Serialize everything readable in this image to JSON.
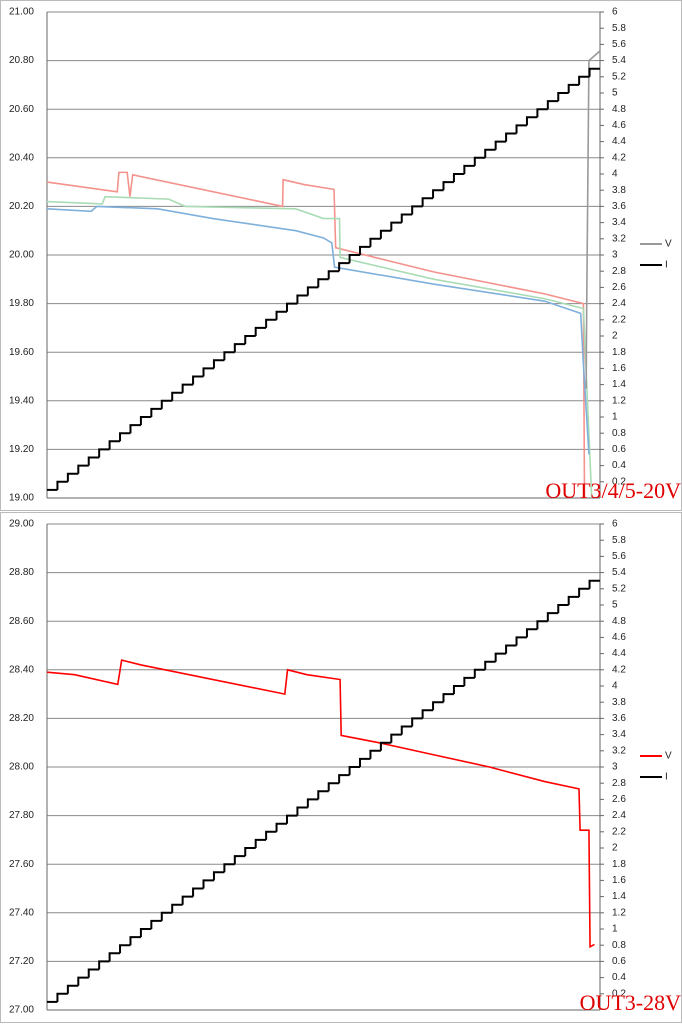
{
  "chart_data": [
    {
      "type": "line",
      "annotation": "OUT3/4/5-20V",
      "xlim": [
        0,
        100
      ],
      "ylim": [
        19,
        21
      ],
      "yticks": [
        {
          "value": 19,
          "label": "19.00"
        },
        {
          "value": 19.2,
          "label": "19.20"
        },
        {
          "value": 19.4,
          "label": "19.40"
        },
        {
          "value": 19.6,
          "label": "19.60"
        },
        {
          "value": 19.8,
          "label": "19.80"
        },
        {
          "value": 20,
          "label": "20.00"
        },
        {
          "value": 20.2,
          "label": "20.20"
        },
        {
          "value": 20.4,
          "label": "20.40"
        },
        {
          "value": 20.6,
          "label": "20.60"
        },
        {
          "value": 20.8,
          "label": "20.80"
        },
        {
          "value": 21,
          "label": "21.00"
        }
      ],
      "y2lim": [
        0,
        6
      ],
      "y2ticks": [
        0.2,
        0.4,
        0.6,
        0.8,
        1,
        1.2,
        1.4,
        1.6,
        1.8,
        2,
        2.2,
        2.4,
        2.6,
        2.8,
        3,
        3.2,
        3.4,
        3.6,
        3.8,
        4,
        4.2,
        4.4,
        4.6,
        4.8,
        5,
        5.2,
        5.4,
        5.6,
        5.8,
        6
      ],
      "grid": true,
      "legend": "right",
      "series": [
        {
          "color": "#f4928c",
          "x": [
            0,
            12.7,
            13,
            14.5,
            15,
            15.5,
            42.6,
            42.7,
            46.5,
            51.9,
            52.2,
            70,
            90,
            97,
            97.2
          ],
          "values": [
            20.3,
            20.26,
            20.34,
            20.34,
            20.24,
            20.33,
            20.2,
            20.31,
            20.29,
            20.27,
            20.03,
            19.93,
            19.84,
            19.8,
            19
          ]
        },
        {
          "color": "#a9dcb5",
          "x": [
            0,
            10,
            10.5,
            22,
            25,
            45,
            50,
            52.9,
            53,
            70,
            90,
            97,
            98.5
          ],
          "values": [
            20.22,
            20.21,
            20.24,
            20.23,
            20.2,
            20.19,
            20.15,
            20.15,
            19.99,
            19.9,
            19.82,
            19.78,
            19
          ]
        },
        {
          "color": "#7fb0dc",
          "x": [
            0,
            8,
            9,
            20,
            30,
            45,
            50,
            51.5,
            52,
            70,
            90,
            96.5,
            97,
            98
          ],
          "values": [
            20.19,
            20.18,
            20.2,
            20.19,
            20.15,
            20.1,
            20.07,
            20.05,
            19.95,
            19.88,
            19.81,
            19.76,
            19.55,
            19.18
          ]
        },
        {
          "name": "V",
          "color": "#999999",
          "x": [
            97.5,
            97.6,
            98,
            100
          ],
          "values": [
            19.45,
            19.8,
            20.8,
            20.84
          ]
        },
        {
          "name": "I",
          "color": "#000000",
          "axis": "y2",
          "step": true,
          "values": [
            0.1,
            0.2,
            0.3,
            0.4,
            0.5,
            0.6,
            0.7,
            0.8,
            0.9,
            1,
            1.1,
            1.2,
            1.3,
            1.4,
            1.5,
            1.6,
            1.7,
            1.8,
            1.9,
            2,
            2.1,
            2.2,
            2.3,
            2.4,
            2.5,
            2.6,
            2.7,
            2.8,
            2.9,
            3,
            3.1,
            3.2,
            3.3,
            3.4,
            3.5,
            3.6,
            3.7,
            3.8,
            3.9,
            4,
            4.1,
            4.2,
            4.3,
            4.4,
            4.5,
            4.6,
            4.7,
            4.8,
            4.9,
            5,
            5.1,
            5.2,
            5.3
          ]
        }
      ]
    },
    {
      "type": "line",
      "annotation": "OUT3-28V",
      "xlim": [
        0,
        100
      ],
      "ylim": [
        27,
        29
      ],
      "yticks": [
        {
          "value": 27,
          "label": "27.00"
        },
        {
          "value": 27.2,
          "label": "27.20"
        },
        {
          "value": 27.4,
          "label": "27.40"
        },
        {
          "value": 27.6,
          "label": "27.60"
        },
        {
          "value": 27.8,
          "label": "27.80"
        },
        {
          "value": 28,
          "label": "28.00"
        },
        {
          "value": 28.2,
          "label": "28.20"
        },
        {
          "value": 28.4,
          "label": "28.40"
        },
        {
          "value": 28.6,
          "label": "28.60"
        },
        {
          "value": 28.8,
          "label": "28.80"
        },
        {
          "value": 29,
          "label": "29.00"
        }
      ],
      "y2lim": [
        0,
        6
      ],
      "y2ticks": [
        0.2,
        0.4,
        0.6,
        0.8,
        1,
        1.2,
        1.4,
        1.6,
        1.8,
        2,
        2.2,
        2.4,
        2.6,
        2.8,
        3,
        3.2,
        3.4,
        3.6,
        3.8,
        4,
        4.2,
        4.4,
        4.6,
        4.8,
        5,
        5.2,
        5.4,
        5.6,
        5.8,
        6
      ],
      "grid": true,
      "legend": "right",
      "series": [
        {
          "name": "V",
          "color": "#ff0000",
          "x": [
            0,
            5,
            12.8,
            13.5,
            17,
            43,
            43.5,
            47,
            53,
            53.2,
            60,
            70,
            80,
            90,
            96.2,
            96.4,
            98,
            98.2,
            99
          ],
          "values": [
            28.39,
            28.38,
            28.34,
            28.44,
            28.42,
            28.3,
            28.4,
            28.38,
            28.36,
            28.13,
            28.1,
            28.05,
            28,
            27.94,
            27.91,
            27.74,
            27.74,
            27.26,
            27.27
          ]
        },
        {
          "name": "I",
          "color": "#000000",
          "axis": "y2",
          "step": true,
          "values": [
            0.1,
            0.2,
            0.3,
            0.4,
            0.5,
            0.6,
            0.7,
            0.8,
            0.9,
            1,
            1.1,
            1.2,
            1.3,
            1.4,
            1.5,
            1.6,
            1.7,
            1.8,
            1.9,
            2,
            2.1,
            2.2,
            2.3,
            2.4,
            2.5,
            2.6,
            2.7,
            2.8,
            2.9,
            3,
            3.1,
            3.2,
            3.3,
            3.4,
            3.5,
            3.6,
            3.7,
            3.8,
            3.9,
            4,
            4.1,
            4.2,
            4.3,
            4.4,
            4.5,
            4.6,
            4.7,
            4.8,
            4.9,
            5,
            5.1,
            5.2,
            5.3
          ]
        }
      ]
    }
  ]
}
